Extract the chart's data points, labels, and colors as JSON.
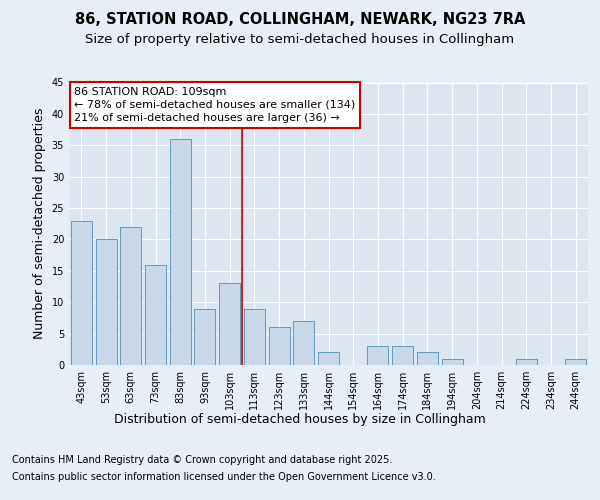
{
  "title1": "86, STATION ROAD, COLLINGHAM, NEWARK, NG23 7RA",
  "title2": "Size of property relative to semi-detached houses in Collingham",
  "xlabel": "Distribution of semi-detached houses by size in Collingham",
  "ylabel": "Number of semi-detached properties",
  "categories": [
    "43sqm",
    "53sqm",
    "63sqm",
    "73sqm",
    "83sqm",
    "93sqm",
    "103sqm",
    "113sqm",
    "123sqm",
    "133sqm",
    "144sqm",
    "154sqm",
    "164sqm",
    "174sqm",
    "184sqm",
    "194sqm",
    "204sqm",
    "214sqm",
    "224sqm",
    "234sqm",
    "244sqm"
  ],
  "values": [
    23,
    20,
    22,
    16,
    36,
    9,
    13,
    9,
    6,
    7,
    2,
    0,
    3,
    3,
    2,
    1,
    0,
    0,
    1,
    0,
    1
  ],
  "bar_color": "#c8d8e8",
  "bar_edge_color": "#6699bb",
  "highlight_label": "86 STATION ROAD: 109sqm",
  "annotation_line1": "← 78% of semi-detached houses are smaller (134)",
  "annotation_line2": "21% of semi-detached houses are larger (36) →",
  "annotation_box_color": "#ffffff",
  "annotation_box_edge": "#cc0000",
  "vline_color": "#cc0000",
  "vline_x": 6.5,
  "ylim": [
    0,
    45
  ],
  "yticks": [
    0,
    5,
    10,
    15,
    20,
    25,
    30,
    35,
    40,
    45
  ],
  "bg_color": "#e8eef5",
  "plot_bg_color": "#dce6f0",
  "footer1": "Contains HM Land Registry data © Crown copyright and database right 2025.",
  "footer2": "Contains public sector information licensed under the Open Government Licence v3.0.",
  "title_fontsize": 10.5,
  "subtitle_fontsize": 9.5,
  "axis_label_fontsize": 9,
  "tick_fontsize": 7,
  "annotation_fontsize": 8,
  "footer_fontsize": 7
}
